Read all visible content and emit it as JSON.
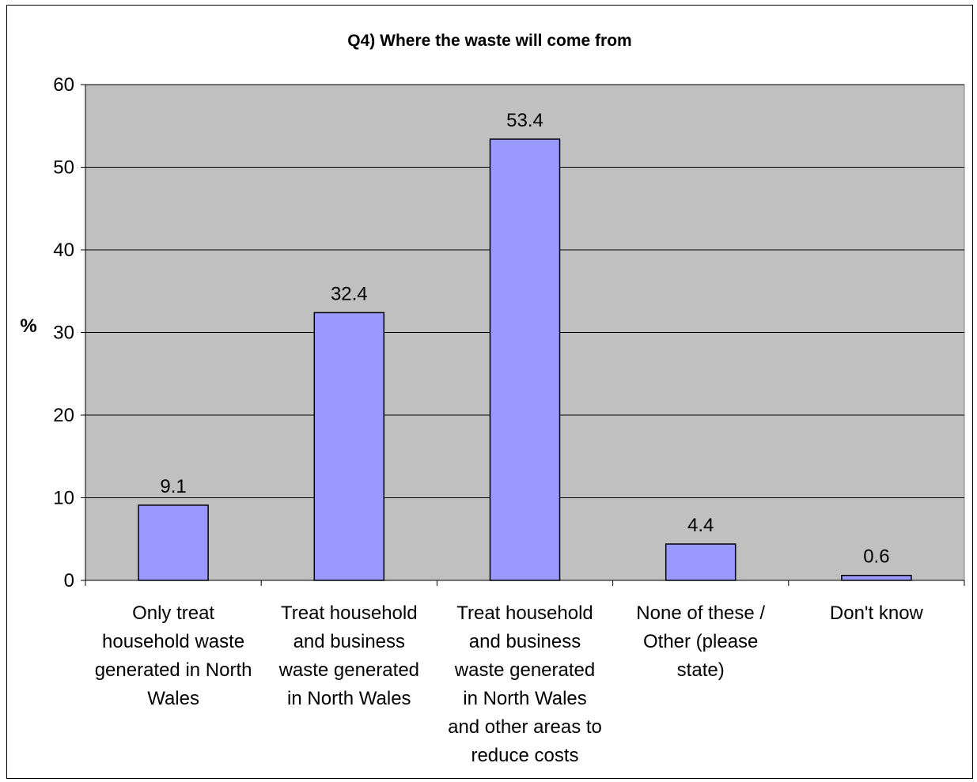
{
  "chart_data": {
    "type": "bar",
    "title": "Q4) Where the waste will come from",
    "ylabel": "%",
    "xlabel": "",
    "ylim": [
      0,
      60
    ],
    "yticks": [
      0,
      10,
      20,
      30,
      40,
      50,
      60
    ],
    "grid": true,
    "categories": [
      [
        "Only treat",
        "household waste",
        "generated in North",
        "Wales"
      ],
      [
        "Treat household",
        "and business",
        "waste generated",
        "in North Wales"
      ],
      [
        "Treat household",
        "and business",
        "waste generated",
        "in North Wales",
        "and other areas to",
        "reduce costs"
      ],
      [
        "None of these /",
        "Other (please",
        "state)"
      ],
      [
        "Don't know"
      ]
    ],
    "values": [
      9.1,
      32.4,
      53.4,
      4.4,
      0.6
    ],
    "data_labels": [
      "9.1",
      "32.4",
      "53.4",
      "4.4",
      "0.6"
    ],
    "colors": {
      "plot_background": "#c0c0c0",
      "bar_fill": "#9999ff",
      "bar_stroke": "#000000",
      "gridline": "#000000"
    }
  }
}
